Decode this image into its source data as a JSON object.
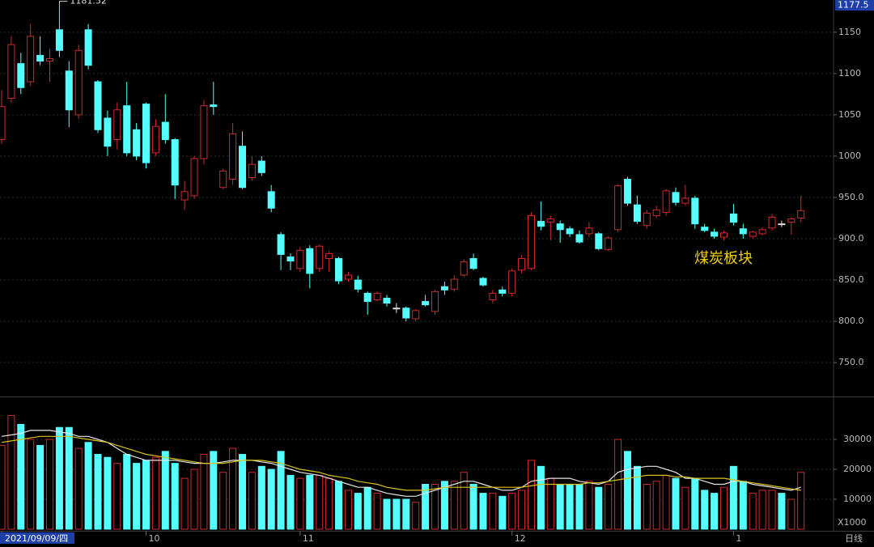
{
  "chart_data": [
    {
      "type": "candlestick",
      "title": "煤炭板块",
      "cursor_value": 1177.5,
      "ylim": [
        709,
        1189
      ],
      "yticks": [
        1150,
        1100,
        1050,
        1000,
        {
          "value": 950,
          "label": "950.0"
        },
        {
          "value": 900,
          "label": "900.0"
        },
        {
          "value": 850,
          "label": "850.0"
        },
        {
          "value": 800,
          "label": "800.0"
        },
        {
          "value": 750,
          "label": "750.0"
        }
      ],
      "up_color": "#d02a2c",
      "down_color": "#54ffff",
      "flat_color": "#e0e0e0",
      "grid": true,
      "max_index": 6,
      "open": [
        1020,
        1070,
        1112,
        1090,
        1122,
        1115,
        1153,
        1103,
        1050,
        1153,
        1090,
        1046,
        1020,
        1061,
        1032,
        1063,
        1004,
        1041,
        1020,
        947,
        952,
        997,
        1062,
        962,
        972,
        1012,
        974,
        994,
        957,
        905,
        878,
        864,
        888,
        864,
        876,
        876,
        851,
        850,
        834,
        826,
        828,
        816,
        816,
        803,
        824,
        812,
        842,
        839,
        856,
        876,
        852,
        826,
        838,
        834,
        862,
        864,
        921,
        920,
        918,
        912,
        905,
        906,
        906,
        887,
        911,
        972,
        941,
        916,
        928,
        932,
        956,
        943,
        949,
        914,
        908,
        902,
        930,
        912,
        903,
        906,
        913,
        918,
        920,
        925
      ],
      "high": [
        1080,
        1145,
        1125,
        1160,
        1145,
        1130,
        1181.52,
        1115,
        1135,
        1160,
        1092,
        1055,
        1065,
        1090,
        1040,
        1065,
        1045,
        1075,
        1022,
        970,
        1000,
        1068,
        1090,
        985,
        1040,
        1030,
        1000,
        1000,
        965,
        908,
        882,
        890,
        892,
        893,
        885,
        878,
        860,
        855,
        836,
        836,
        832,
        822,
        818,
        815,
        832,
        838,
        848,
        856,
        875,
        882,
        854,
        838,
        842,
        864,
        880,
        932,
        945,
        928,
        922,
        915,
        910,
        920,
        908,
        903,
        966,
        975,
        952,
        935,
        940,
        960,
        962,
        965,
        952,
        918,
        912,
        910,
        942,
        918,
        910,
        914,
        930,
        922,
        926,
        952
      ],
      "low": [
        1015,
        1065,
        1075,
        1085,
        1110,
        1090,
        1120,
        1035,
        1045,
        1105,
        1028,
        1000,
        1008,
        1000,
        995,
        985,
        1000,
        1015,
        948,
        935,
        948,
        990,
        1050,
        960,
        965,
        960,
        970,
        976,
        932,
        862,
        862,
        860,
        840,
        860,
        860,
        845,
        848,
        835,
        808,
        824,
        818,
        810,
        800,
        800,
        818,
        808,
        832,
        836,
        854,
        862,
        842,
        822,
        830,
        830,
        858,
        862,
        910,
        898,
        895,
        902,
        894,
        902,
        886,
        885,
        908,
        940,
        918,
        912,
        925,
        928,
        940,
        940,
        912,
        908,
        900,
        898,
        916,
        900,
        900,
        904,
        910,
        914,
        905,
        920
      ],
      "close": [
        1060,
        1135,
        1083,
        1145,
        1115,
        1118,
        1128,
        1056,
        1128,
        1110,
        1032,
        1012,
        1056,
        1004,
        1000,
        992,
        1036,
        1020,
        965,
        957,
        997,
        1061,
        1060,
        982,
        1027,
        962,
        990,
        980,
        937,
        881,
        873,
        886,
        858,
        891,
        882,
        849,
        856,
        839,
        824,
        834,
        822,
        816,
        804,
        813,
        820,
        836,
        838,
        851,
        872,
        864,
        844,
        834,
        834,
        861,
        876,
        928,
        915,
        924,
        911,
        906,
        896,
        913,
        888,
        901,
        964,
        943,
        921,
        931,
        935,
        958,
        944,
        949,
        918,
        910,
        903,
        907,
        920,
        906,
        908,
        911,
        926,
        918,
        924,
        934
      ]
    },
    {
      "type": "bar",
      "unit": "X1000",
      "period": "日线",
      "ylim": [
        0,
        43800
      ],
      "yticks": [
        10000,
        20000,
        30000
      ],
      "grid": true,
      "xticks": [
        {
          "value": 0,
          "label": "2021/09/09/四"
        },
        {
          "value": 15,
          "label": "10"
        },
        {
          "value": 31,
          "label": "11"
        },
        {
          "value": 53,
          "label": "12"
        },
        {
          "value": 76,
          "label": "1"
        }
      ],
      "values": [
        28000,
        38000,
        35000,
        30000,
        28000,
        30000,
        34000,
        34000,
        27000,
        29000,
        25000,
        24000,
        22000,
        25000,
        22000,
        23000,
        24000,
        26000,
        22000,
        17000,
        20000,
        25000,
        26000,
        19000,
        27000,
        25000,
        19000,
        21000,
        20000,
        26000,
        18000,
        17000,
        18000,
        18000,
        17000,
        16000,
        13000,
        12000,
        14000,
        12000,
        10000,
        10000,
        10000,
        9000,
        15000,
        15000,
        16000,
        16000,
        19000,
        15000,
        12000,
        12000,
        11000,
        12000,
        13000,
        23000,
        21000,
        17000,
        15000,
        15000,
        15000,
        16000,
        14000,
        15000,
        30000,
        26000,
        21000,
        15000,
        16000,
        18000,
        17000,
        14000,
        17000,
        13000,
        12000,
        14000,
        21000,
        16000,
        12000,
        13000,
        13000,
        12000,
        10000,
        19000
      ],
      "lines": [
        {
          "color": "#e6e6e6",
          "values": [
            31000,
            31500,
            32000,
            33000,
            33000,
            33000,
            32500,
            32000,
            31000,
            31000,
            30000,
            29000,
            27000,
            25000,
            24000,
            23000,
            23000,
            23000,
            23000,
            22500,
            22000,
            22000,
            22000,
            22500,
            23000,
            23000,
            23000,
            22500,
            22000,
            21000,
            20000,
            19000,
            18500,
            18000,
            17000,
            16000,
            15000,
            14000,
            14000,
            13000,
            12000,
            11500,
            11000,
            11000,
            12000,
            13000,
            14000,
            15000,
            16000,
            16000,
            15000,
            14000,
            13000,
            13000,
            14000,
            16000,
            16500,
            17000,
            17000,
            17000,
            16000,
            15500,
            15000,
            16000,
            19000,
            20000,
            20500,
            21000,
            21000,
            20000,
            19000,
            17000,
            17000,
            16000,
            15000,
            15000,
            16000,
            16000,
            15000,
            14500,
            14000,
            13500,
            13000,
            14000
          ]
        },
        {
          "color": "#d8c21c",
          "values": [
            29000,
            29500,
            30000,
            30500,
            31000,
            31000,
            31000,
            31000,
            30500,
            30000,
            29500,
            29000,
            28000,
            27000,
            26000,
            25000,
            24500,
            24000,
            23500,
            23000,
            22500,
            22000,
            22000,
            22000,
            22500,
            23000,
            23000,
            23000,
            22500,
            22000,
            21000,
            20000,
            19500,
            19000,
            18000,
            17500,
            17000,
            16000,
            15500,
            15000,
            14000,
            13500,
            13000,
            13000,
            13000,
            13500,
            14000,
            14000,
            14000,
            14000,
            14000,
            14000,
            14000,
            14000,
            14000,
            14500,
            15000,
            15000,
            15000,
            15000,
            15000,
            15500,
            15500,
            16000,
            16500,
            17000,
            17500,
            18000,
            18000,
            18000,
            17500,
            17500,
            17000,
            17000,
            17000,
            17000,
            16500,
            16000,
            15500,
            15000,
            14500,
            14000,
            13500,
            13000
          ]
        }
      ]
    }
  ]
}
